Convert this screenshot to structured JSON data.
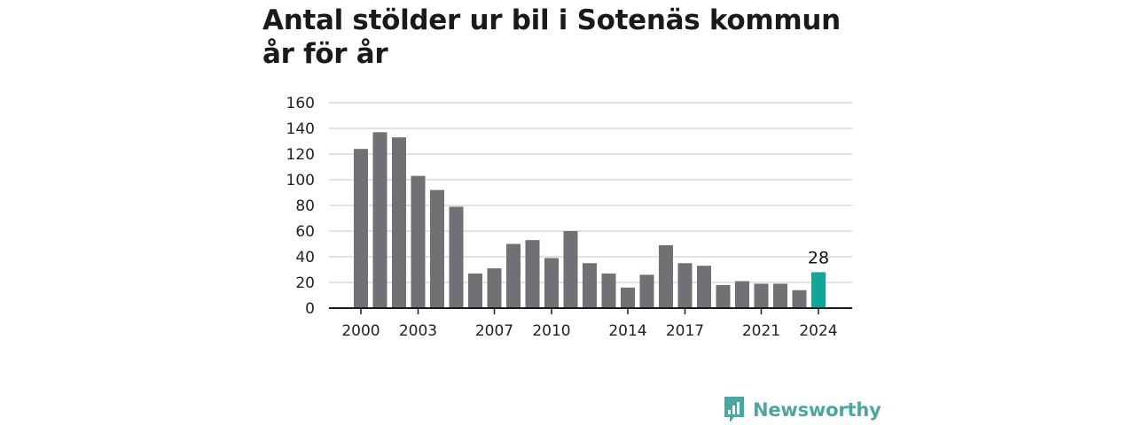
{
  "title_line1": "Antal stölder ur bil i Sotenäs kommun",
  "title_line2": "år för år",
  "brand": {
    "name": "Newsworthy",
    "color": "#4aa8a0",
    "icon": "bar-chart-speech-bubble-icon"
  },
  "colors": {
    "bar": "#707075",
    "highlight": "#11a697",
    "grid": "#d9d9d9",
    "axis": "#1a1a1a"
  },
  "chart_data": {
    "type": "bar",
    "title": "Antal stölder ur bil i Sotenäs kommun år för år",
    "x": [
      2000,
      2001,
      2002,
      2003,
      2004,
      2005,
      2006,
      2007,
      2008,
      2009,
      2010,
      2011,
      2012,
      2013,
      2014,
      2015,
      2016,
      2017,
      2018,
      2019,
      2020,
      2021,
      2022,
      2023,
      2024
    ],
    "values": [
      124,
      137,
      133,
      103,
      92,
      79,
      27,
      31,
      50,
      53,
      39,
      60,
      35,
      27,
      16,
      26,
      49,
      35,
      33,
      18,
      21,
      19,
      19,
      14,
      28
    ],
    "x_tick_labels": [
      "2000",
      "2003",
      "2007",
      "2010",
      "2014",
      "2017",
      "2021",
      "2024"
    ],
    "y_ticks": [
      0,
      20,
      40,
      60,
      80,
      100,
      120,
      140,
      160
    ],
    "ylim": [
      0,
      160
    ],
    "highlight": {
      "x": 2024,
      "label": "28"
    },
    "grid": true,
    "xlabel": "",
    "ylabel": ""
  }
}
